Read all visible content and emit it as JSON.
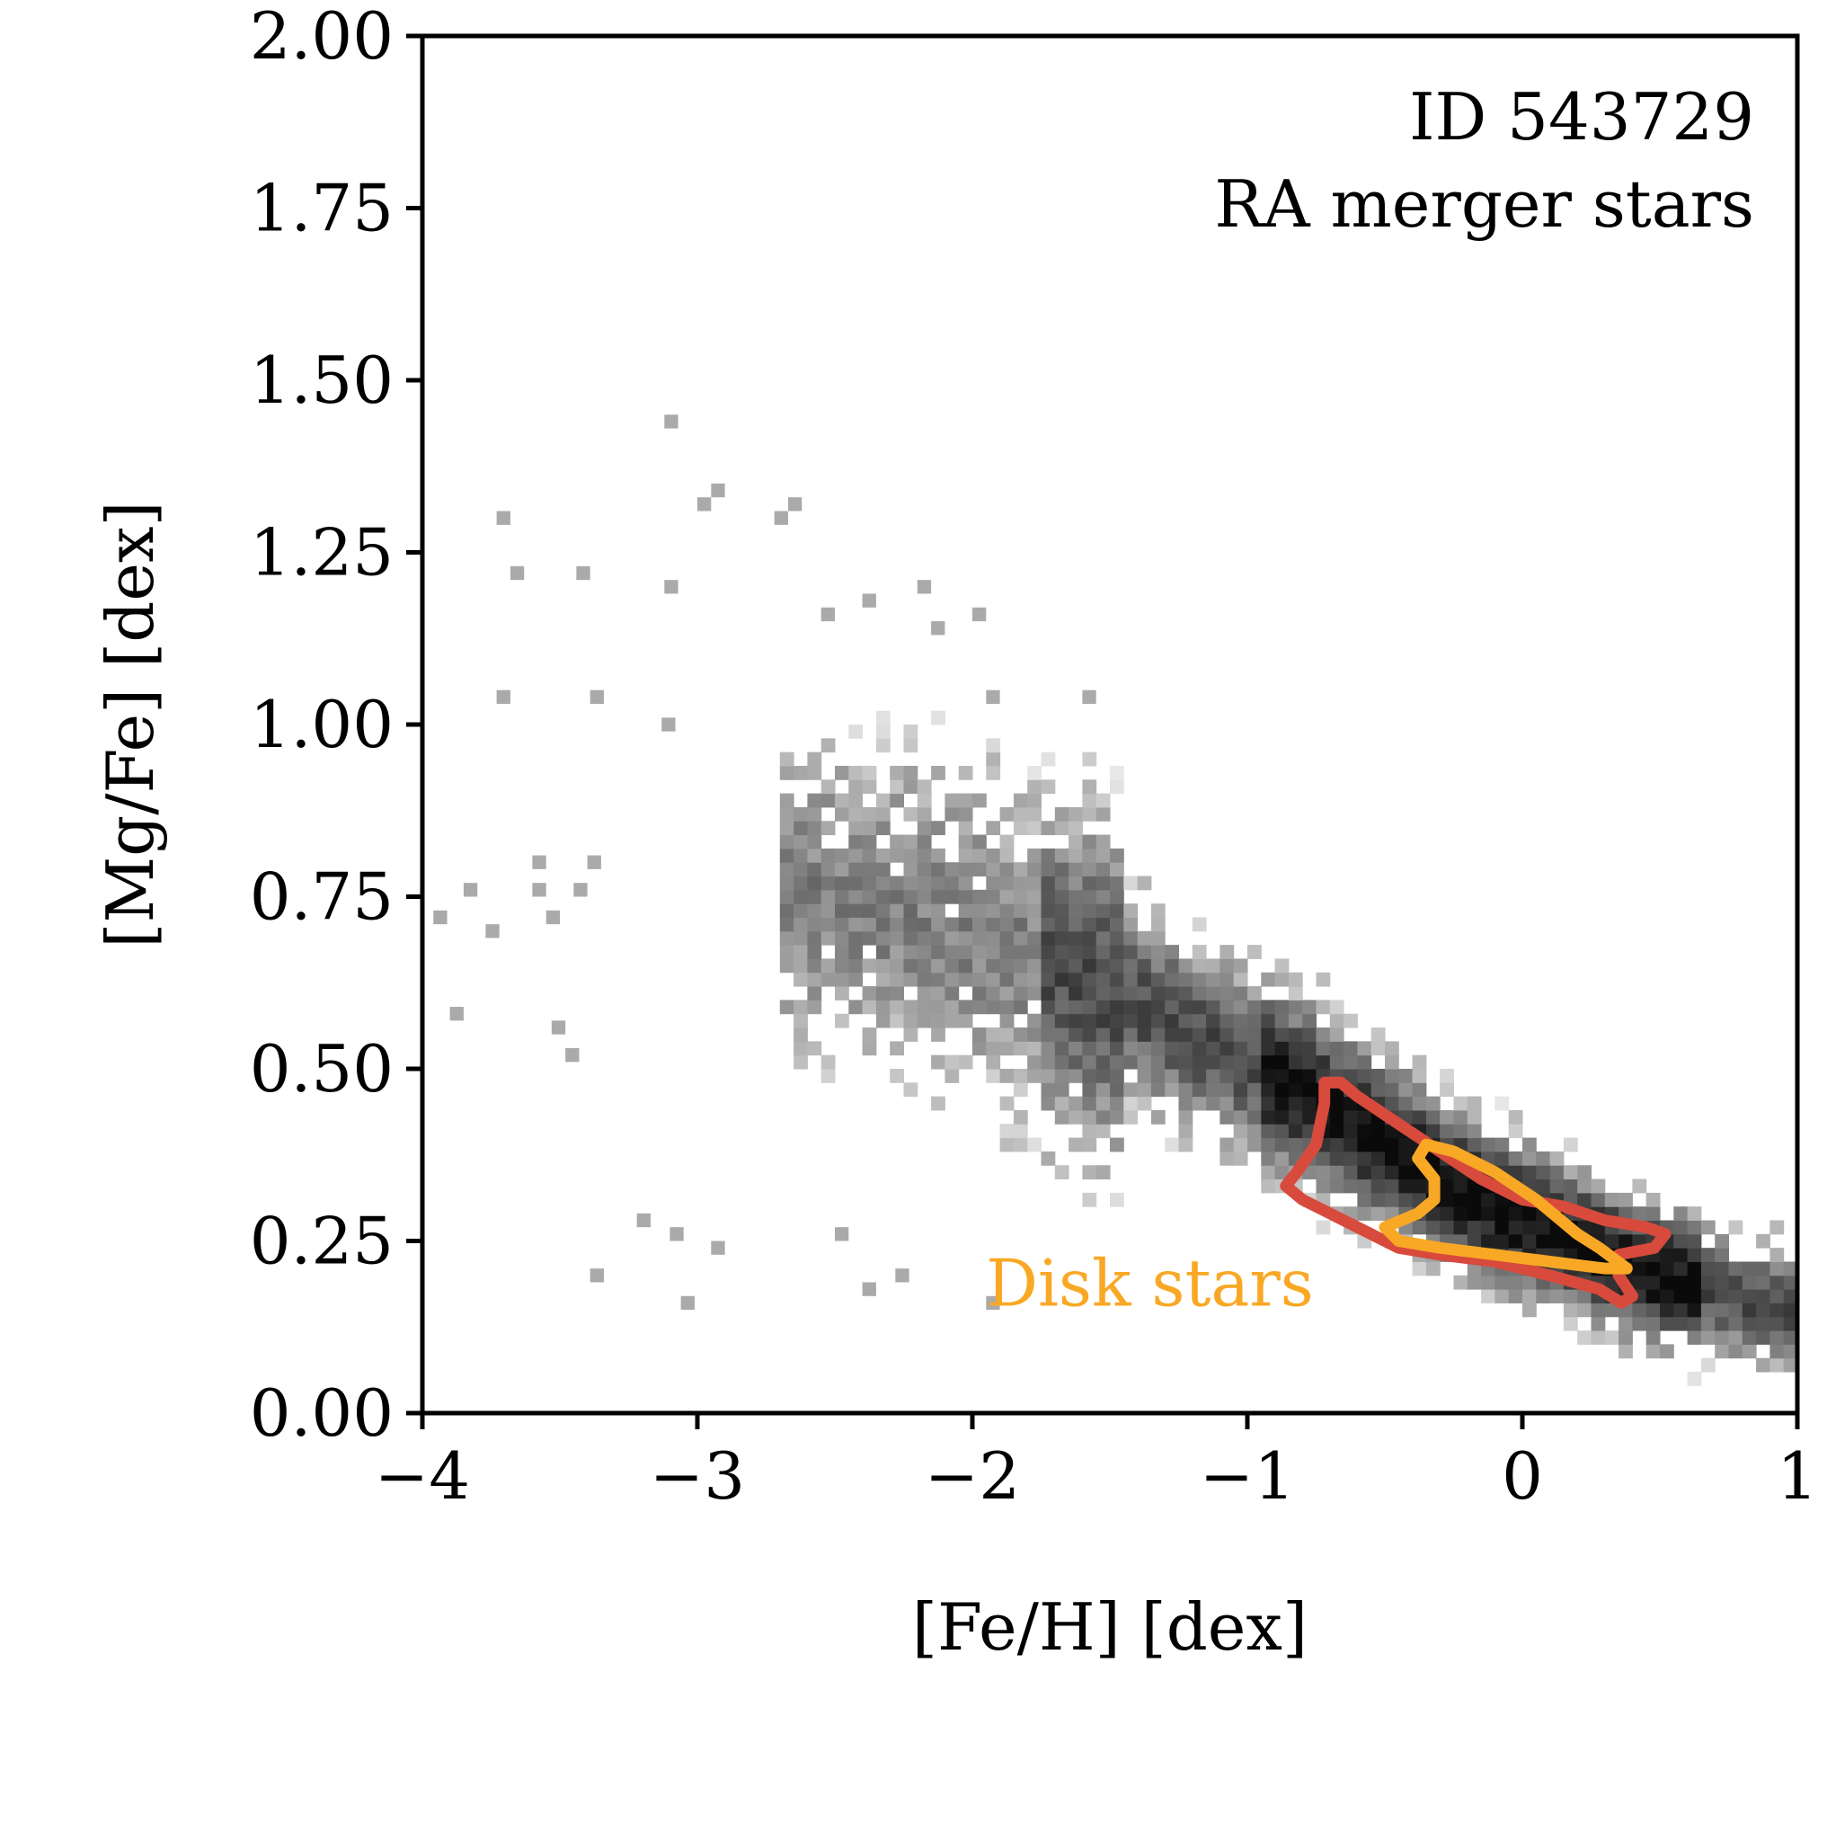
{
  "chart_data": {
    "type": "heatmap",
    "title": "",
    "xlabel": "[Fe/H] [dex]",
    "ylabel": "[Mg/Fe] [dex]",
    "xlim": [
      -4,
      1
    ],
    "ylim": [
      0,
      2
    ],
    "x_ticks": [
      -4,
      -3,
      -2,
      -1,
      0,
      1
    ],
    "x_tick_labels": [
      "−4",
      "−3",
      "−2",
      "−1",
      "0",
      "1"
    ],
    "y_ticks": [
      0,
      0.25,
      0.5,
      0.75,
      1.0,
      1.25,
      1.5,
      1.75,
      2.0
    ],
    "y_tick_labels": [
      "0.00",
      "0.25",
      "0.50",
      "0.75",
      "1.00",
      "1.25",
      "1.50",
      "1.75",
      "2.00"
    ],
    "grid": false,
    "colormap": "greys",
    "annotations": {
      "id_text": "ID 543729",
      "sample_text": "RA merger stars",
      "disk_label": "Disk stars",
      "disk_label_color": "#f9a825"
    },
    "density_band": {
      "description_points": [
        {
          "feh": -2.2,
          "mgfe": 0.72
        },
        {
          "feh": -1.5,
          "mgfe": 0.6
        },
        {
          "feh": -0.8,
          "mgfe": 0.45
        },
        {
          "feh": -0.2,
          "mgfe": 0.3
        },
        {
          "feh": 0.4,
          "mgfe": 0.2
        },
        {
          "feh": 0.9,
          "mgfe": 0.14
        }
      ]
    },
    "sparse_points": [
      {
        "x": -3.12,
        "y": 1.43
      },
      {
        "x": -3.0,
        "y": 1.31
      },
      {
        "x": -2.95,
        "y": 1.33
      },
      {
        "x": -2.72,
        "y": 1.29
      },
      {
        "x": -2.67,
        "y": 1.31
      },
      {
        "x": -3.73,
        "y": 1.29
      },
      {
        "x": -3.68,
        "y": 1.21
      },
      {
        "x": -3.44,
        "y": 1.21
      },
      {
        "x": -3.12,
        "y": 1.19
      },
      {
        "x": -3.73,
        "y": 1.03
      },
      {
        "x": -3.39,
        "y": 1.03
      },
      {
        "x": -3.13,
        "y": 0.99
      },
      {
        "x": -3.6,
        "y": 0.79
      },
      {
        "x": -3.4,
        "y": 0.79
      },
      {
        "x": -3.6,
        "y": 0.75
      },
      {
        "x": -3.85,
        "y": 0.75
      },
      {
        "x": -3.96,
        "y": 0.71
      },
      {
        "x": -3.77,
        "y": 0.69
      },
      {
        "x": -3.45,
        "y": 0.75
      },
      {
        "x": -3.55,
        "y": 0.71
      },
      {
        "x": -3.9,
        "y": 0.57
      },
      {
        "x": -3.53,
        "y": 0.55
      },
      {
        "x": -3.48,
        "y": 0.51
      },
      {
        "x": -3.39,
        "y": 0.19
      },
      {
        "x": -3.22,
        "y": 0.27
      },
      {
        "x": -3.06,
        "y": 0.15
      },
      {
        "x": -3.1,
        "y": 0.25
      },
      {
        "x": -2.95,
        "y": 0.23
      },
      {
        "x": -2.5,
        "y": 0.25
      },
      {
        "x": -2.4,
        "y": 0.17
      },
      {
        "x": -2.28,
        "y": 0.19
      },
      {
        "x": -1.95,
        "y": 0.15
      },
      {
        "x": -2.2,
        "y": 1.19
      },
      {
        "x": -2.4,
        "y": 1.17
      },
      {
        "x": -2.55,
        "y": 1.15
      },
      {
        "x": -2.0,
        "y": 1.15
      },
      {
        "x": -2.15,
        "y": 1.13
      },
      {
        "x": -1.6,
        "y": 1.03
      },
      {
        "x": -1.95,
        "y": 1.03
      }
    ],
    "contours": [
      {
        "name": "RA merger stars",
        "color": "#d84a3c",
        "points": [
          [
            -0.66,
            0.48
          ],
          [
            -0.6,
            0.46
          ],
          [
            -0.45,
            0.42
          ],
          [
            -0.3,
            0.38
          ],
          [
            -0.15,
            0.34
          ],
          [
            0.0,
            0.31
          ],
          [
            0.15,
            0.3
          ],
          [
            0.3,
            0.28
          ],
          [
            0.45,
            0.27
          ],
          [
            0.52,
            0.26
          ],
          [
            0.48,
            0.24
          ],
          [
            0.35,
            0.23
          ],
          [
            0.35,
            0.2
          ],
          [
            0.4,
            0.17
          ],
          [
            0.36,
            0.16
          ],
          [
            0.28,
            0.18
          ],
          [
            0.1,
            0.2
          ],
          [
            -0.1,
            0.22
          ],
          [
            -0.3,
            0.23
          ],
          [
            -0.45,
            0.24
          ],
          [
            -0.6,
            0.27
          ],
          [
            -0.8,
            0.31
          ],
          [
            -0.86,
            0.33
          ],
          [
            -0.82,
            0.35
          ],
          [
            -0.75,
            0.39
          ],
          [
            -0.72,
            0.45
          ],
          [
            -0.72,
            0.48
          ]
        ]
      },
      {
        "name": "Disk stars",
        "color": "#f9a825",
        "points": [
          [
            -0.35,
            0.39
          ],
          [
            -0.25,
            0.38
          ],
          [
            -0.1,
            0.35
          ],
          [
            0.05,
            0.31
          ],
          [
            0.2,
            0.26
          ],
          [
            0.28,
            0.24
          ],
          [
            0.38,
            0.21
          ],
          [
            0.3,
            0.21
          ],
          [
            0.1,
            0.22
          ],
          [
            -0.1,
            0.23
          ],
          [
            -0.3,
            0.24
          ],
          [
            -0.45,
            0.25
          ],
          [
            -0.5,
            0.27
          ],
          [
            -0.38,
            0.29
          ],
          [
            -0.32,
            0.31
          ],
          [
            -0.32,
            0.34
          ],
          [
            -0.38,
            0.37
          ]
        ]
      }
    ]
  }
}
